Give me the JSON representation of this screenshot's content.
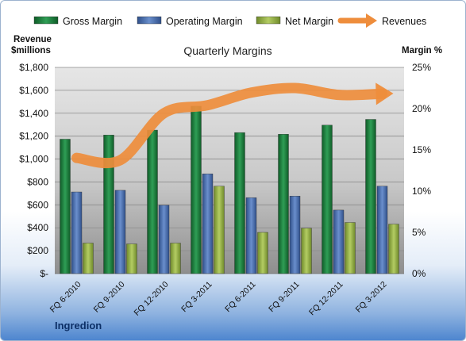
{
  "chart_data": {
    "type": "bar",
    "title": "Quarterly Margins",
    "company": "Ingredion",
    "categories": [
      "FQ 6-2010",
      "FQ 9-2010",
      "FQ 12-2010",
      "FQ 3-2011",
      "FQ 6-2011",
      "FQ 9-2011",
      "FQ 12-2011",
      "FQ 3-2012"
    ],
    "ylabel_left": "Revenue\n$millions",
    "ylabel_right": "Margin %",
    "ylim_left": [
      0,
      1800
    ],
    "ylim_right": [
      0,
      25
    ],
    "yticks_left": [
      "$-",
      "$200",
      "$400",
      "$600",
      "$800",
      "$1,000",
      "$1,200",
      "$1,400",
      "$1,600",
      "$1,800"
    ],
    "yticks_right": [
      "0%",
      "5%",
      "10%",
      "15%",
      "20%",
      "25%"
    ],
    "grid": true,
    "legend": "top",
    "series": [
      {
        "name": "Gross Margin",
        "axis": "right",
        "kind": "bar",
        "color": "#1e7d3e",
        "values": [
          16.3,
          16.8,
          17.4,
          20.3,
          17.1,
          16.9,
          18.0,
          18.7
        ]
      },
      {
        "name": "Operating Margin",
        "axis": "right",
        "kind": "bar",
        "color": "#4a6fb0",
        "values": [
          9.9,
          10.1,
          8.3,
          12.1,
          9.2,
          9.4,
          7.7,
          10.6
        ]
      },
      {
        "name": "Net Margin",
        "axis": "right",
        "kind": "bar",
        "color": "#95b143",
        "values": [
          3.7,
          3.6,
          3.7,
          10.6,
          5.0,
          5.5,
          6.2,
          6.0
        ]
      },
      {
        "name": "Revenues",
        "axis": "left",
        "kind": "line",
        "color": "#ee8d3c",
        "values": [
          1010,
          990,
          1400,
          1470,
          1580,
          1620,
          1560,
          1570
        ]
      }
    ]
  }
}
